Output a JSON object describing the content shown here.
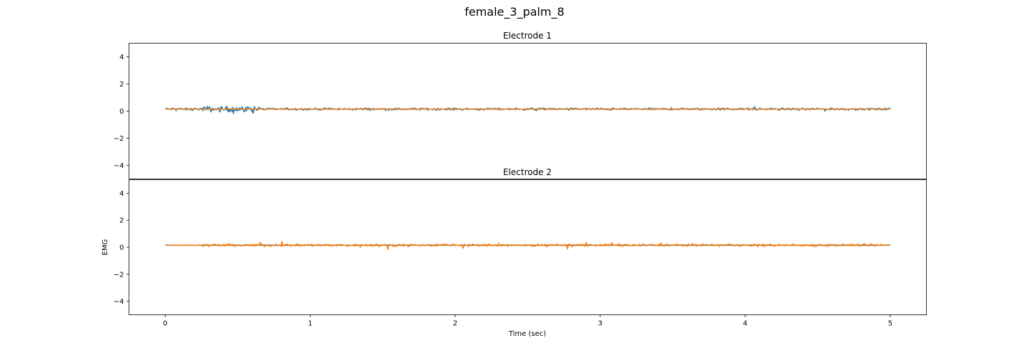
{
  "figure": {
    "suptitle": "female_3_palm_8"
  },
  "chart_data": [
    {
      "type": "line",
      "title": "Electrode 1",
      "xlabel": "",
      "ylabel": "",
      "xlim": [
        -0.25,
        5.25
      ],
      "ylim": [
        -5,
        5
      ],
      "yticks": [
        "4",
        "2",
        "0",
        "−2",
        "−4"
      ],
      "ytick_values": [
        4,
        2,
        0,
        -2,
        -4
      ],
      "xticks": [],
      "grid": false,
      "x_start": 0,
      "x_end": 5,
      "series": [
        {
          "color": "#1f77b4",
          "baseline": 0.15,
          "amplitude": 0.12,
          "burst": {
            "start": 0.25,
            "end": 0.65,
            "amplitude": 0.3
          }
        },
        {
          "color": "#ff7f0e",
          "baseline": 0.15,
          "amplitude": 0.02
        }
      ]
    },
    {
      "type": "line",
      "title": "Electrode 2",
      "xlabel": "Time (sec)",
      "ylabel": "EMG",
      "xlim": [
        -0.25,
        5.25
      ],
      "ylim": [
        -5,
        5
      ],
      "yticks": [
        "4",
        "2",
        "0",
        "−2",
        "−4"
      ],
      "ytick_values": [
        4,
        2,
        0,
        -2,
        -4
      ],
      "xticks": [
        "0",
        "1",
        "2",
        "3",
        "4",
        "5"
      ],
      "xtick_values": [
        0,
        1,
        2,
        3,
        4,
        5
      ],
      "grid": false,
      "x_start": 0,
      "x_end": 5,
      "series": [
        {
          "color": "#1f77b4",
          "baseline": 0.15,
          "amplitude": 0.02
        },
        {
          "color": "#ff7f0e",
          "baseline": 0.15,
          "amplitude": 0.14,
          "quiet": {
            "start": 0,
            "end": 0.25,
            "amplitude": 0.03
          }
        }
      ]
    }
  ]
}
